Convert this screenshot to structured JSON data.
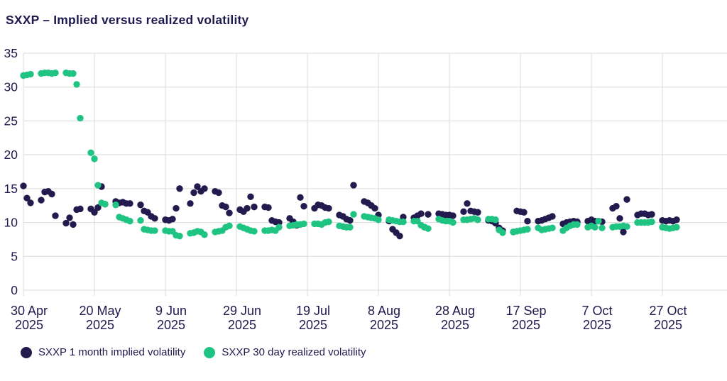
{
  "title": "SXXP – Implied versus realized volatility",
  "colors": {
    "text": "#1f1a4e",
    "grid": "#d9d9d9",
    "background": "#ffffff",
    "implied": "#221b4e",
    "realized": "#20c482"
  },
  "legend": {
    "items": [
      {
        "label": "SXXP 1 month implied volatility",
        "color": "#221b4e"
      },
      {
        "label": "SXXP 30 day realized volatility",
        "color": "#20c482"
      }
    ]
  },
  "chart_data": {
    "type": "scatter",
    "title": "SXXP – Implied versus realized volatility",
    "xlabel": "",
    "ylabel": "",
    "ylim": [
      0,
      35
    ],
    "y_ticks": [
      0,
      5,
      10,
      15,
      20,
      25,
      30,
      35
    ],
    "grid": true,
    "legend_position": "bottom",
    "x_unit": "business days, offsets counted from 30 Apr 2025",
    "x_ticks": [
      {
        "label": "30 Apr",
        "year": "2025",
        "day": 0
      },
      {
        "label": "20 May",
        "year": "2025",
        "day": 20
      },
      {
        "label": "9 Jun",
        "year": "2025",
        "day": 40
      },
      {
        "label": "29 Jun",
        "year": "2025",
        "day": 60
      },
      {
        "label": "19 Jul",
        "year": "2025",
        "day": 80
      },
      {
        "label": "8 Aug",
        "year": "2025",
        "day": 100
      },
      {
        "label": "28 Aug",
        "year": "2025",
        "day": 120
      },
      {
        "label": "17 Sep",
        "year": "2025",
        "day": 140
      },
      {
        "label": "7 Oct",
        "year": "2025",
        "day": 160
      },
      {
        "label": "27 Oct",
        "year": "2025",
        "day": 180
      }
    ],
    "dates": [
      "30 Apr",
      "1 May",
      "2 May",
      "5 May",
      "6 May",
      "7 May",
      "8 May",
      "9 May",
      "12 May",
      "13 May",
      "14 May",
      "15 May",
      "16 May",
      "19 May",
      "20 May",
      "21 May",
      "22 May",
      "23 May",
      "26 May",
      "27 May",
      "28 May",
      "29 May",
      "30 May",
      "2 Jun",
      "3 Jun",
      "4 Jun",
      "5 Jun",
      "6 Jun",
      "9 Jun",
      "10 Jun",
      "11 Jun",
      "12 Jun",
      "13 Jun",
      "16 Jun",
      "17 Jun",
      "18 Jun",
      "19 Jun",
      "20 Jun",
      "23 Jun",
      "24 Jun",
      "25 Jun",
      "26 Jun",
      "27 Jun",
      "30 Jun",
      "1 Jul",
      "2 Jul",
      "3 Jul",
      "4 Jul",
      "7 Jul",
      "8 Jul",
      "9 Jul",
      "10 Jul",
      "11 Jul",
      "14 Jul",
      "15 Jul",
      "16 Jul",
      "17 Jul",
      "18 Jul",
      "21 Jul",
      "22 Jul",
      "23 Jul",
      "24 Jul",
      "25 Jul",
      "28 Jul",
      "29 Jul",
      "30 Jul",
      "31 Jul",
      "1 Aug",
      "4 Aug",
      "5 Aug",
      "6 Aug",
      "7 Aug",
      "8 Aug",
      "11 Aug",
      "12 Aug",
      "13 Aug",
      "14 Aug",
      "15 Aug",
      "18 Aug",
      "19 Aug",
      "20 Aug",
      "21 Aug",
      "22 Aug",
      "25 Aug",
      "26 Aug",
      "27 Aug",
      "28 Aug",
      "29 Aug",
      "1 Sep",
      "2 Sep",
      "3 Sep",
      "4 Sep",
      "5 Sep",
      "8 Sep",
      "9 Sep",
      "10 Sep",
      "11 Sep",
      "12 Sep",
      "15 Sep",
      "16 Sep",
      "17 Sep",
      "18 Sep",
      "19 Sep",
      "22 Sep",
      "23 Sep",
      "24 Sep",
      "25 Sep",
      "26 Sep",
      "29 Sep",
      "30 Sep",
      "1 Oct",
      "2 Oct",
      "3 Oct",
      "6 Oct",
      "7 Oct",
      "8 Oct",
      "9 Oct",
      "10 Oct",
      "13 Oct",
      "14 Oct",
      "15 Oct",
      "16 Oct",
      "17 Oct",
      "20 Oct",
      "21 Oct",
      "22 Oct",
      "23 Oct",
      "24 Oct",
      "27 Oct",
      "28 Oct",
      "29 Oct",
      "30 Oct",
      "31 Oct"
    ],
    "day_offsets": [
      0,
      1,
      2,
      5,
      6,
      7,
      8,
      9,
      12,
      13,
      14,
      15,
      16,
      19,
      20,
      21,
      22,
      23,
      26,
      27,
      28,
      29,
      30,
      33,
      34,
      35,
      36,
      37,
      40,
      41,
      42,
      43,
      44,
      47,
      48,
      49,
      50,
      51,
      54,
      55,
      56,
      57,
      58,
      61,
      62,
      63,
      64,
      65,
      68,
      69,
      70,
      71,
      72,
      75,
      76,
      77,
      78,
      79,
      82,
      83,
      84,
      85,
      86,
      89,
      90,
      91,
      92,
      93,
      96,
      97,
      98,
      99,
      100,
      103,
      104,
      105,
      106,
      107,
      110,
      111,
      112,
      113,
      114,
      117,
      118,
      119,
      120,
      121,
      124,
      125,
      126,
      127,
      128,
      131,
      132,
      133,
      134,
      135,
      138,
      139,
      140,
      141,
      142,
      145,
      146,
      147,
      148,
      149,
      152,
      153,
      154,
      155,
      156,
      159,
      160,
      161,
      162,
      163,
      166,
      167,
      168,
      169,
      170,
      173,
      174,
      175,
      176,
      177,
      180,
      181,
      182,
      183,
      184
    ],
    "series": [
      {
        "name": "SXXP 1 month implied volatility",
        "color": "#221b4e",
        "marker": "circle",
        "values": [
          15.4,
          13.6,
          12.9,
          13.3,
          14.5,
          14.6,
          14.2,
          11.0,
          9.9,
          10.7,
          9.7,
          11.9,
          12.0,
          12.0,
          11.5,
          12.2,
          15.3,
          12.7,
          13.1,
          12.9,
          13.0,
          12.8,
          12.8,
          12.6,
          11.7,
          11.5,
          10.9,
          10.6,
          10.4,
          10.3,
          10.5,
          12.1,
          15.0,
          12.8,
          14.4,
          15.3,
          14.6,
          15.0,
          14.6,
          14.4,
          12.5,
          12.3,
          11.4,
          11.9,
          11.6,
          12.1,
          13.8,
          12.3,
          12.3,
          12.2,
          10.3,
          10.1,
          10.0,
          10.6,
          10.1,
          9.6,
          13.7,
          12.4,
          12.1,
          12.6,
          12.5,
          12.2,
          12.1,
          11.1,
          10.9,
          10.5,
          10.3,
          15.5,
          13.1,
          12.9,
          12.5,
          12.1,
          11.1,
          10.2,
          9.0,
          8.5,
          8.0,
          10.8,
          10.7,
          11.0,
          11.3,
          9.3,
          11.2,
          11.3,
          11.2,
          11.1,
          11.1,
          11.0,
          11.6,
          12.8,
          11.7,
          11.6,
          11.5,
          10.3,
          10.2,
          9.9,
          9.2,
          8.8,
          8.6,
          11.7,
          11.6,
          11.5,
          10.2,
          10.2,
          10.3,
          10.5,
          10.7,
          10.9,
          9.8,
          10.0,
          10.1,
          10.2,
          10.1,
          10.2,
          10.4,
          10.2,
          10.2,
          10.1,
          12.1,
          12.4,
          10.6,
          8.6,
          13.4,
          11.1,
          11.3,
          11.3,
          11.1,
          11.2,
          10.3,
          10.2,
          10.3,
          10.2,
          10.4
        ]
      },
      {
        "name": "SXXP 30 day realized volatility",
        "color": "#20c482",
        "marker": "circle",
        "values": [
          31.7,
          31.8,
          31.9,
          32.0,
          32.1,
          32.1,
          32.0,
          32.1,
          32.1,
          32.0,
          32.0,
          30.4,
          25.4,
          20.3,
          19.4,
          15.5,
          12.9,
          12.7,
          12.6,
          10.8,
          10.6,
          10.4,
          10.2,
          10.3,
          9.0,
          8.9,
          8.8,
          8.8,
          8.8,
          8.7,
          8.7,
          8.1,
          8.0,
          8.4,
          8.5,
          8.7,
          8.6,
          8.2,
          8.6,
          8.7,
          8.8,
          9.3,
          9.5,
          9.4,
          9.2,
          9.0,
          8.8,
          8.7,
          8.8,
          8.8,
          8.9,
          8.8,
          9.3,
          9.5,
          9.6,
          9.7,
          9.7,
          9.8,
          9.8,
          9.8,
          9.7,
          10.0,
          10.1,
          9.5,
          9.4,
          9.3,
          9.3,
          11.2,
          10.9,
          10.8,
          10.7,
          10.6,
          10.4,
          10.4,
          10.3,
          10.2,
          10.1,
          10.1,
          10.2,
          10.2,
          9.6,
          9.3,
          9.1,
          10.5,
          10.3,
          10.2,
          10.2,
          10.0,
          10.4,
          10.4,
          10.5,
          10.6,
          10.4,
          10.5,
          10.5,
          10.4,
          8.9,
          8.5,
          8.6,
          8.7,
          8.8,
          8.9,
          9.0,
          9.2,
          8.9,
          9.0,
          9.1,
          9.2,
          8.8,
          9.2,
          9.5,
          9.7,
          9.7,
          9.3,
          9.5,
          9.3,
          10.2,
          9.2,
          9.3,
          9.4,
          9.4,
          9.5,
          9.4,
          10.0,
          10.0,
          10.0,
          10.0,
          10.1,
          9.3,
          9.2,
          9.1,
          9.2,
          9.3
        ]
      }
    ]
  }
}
